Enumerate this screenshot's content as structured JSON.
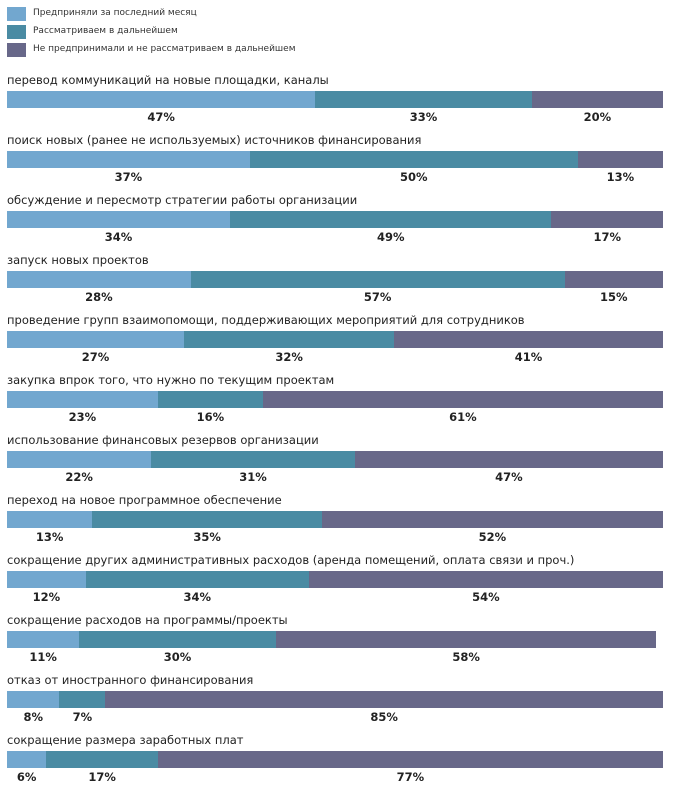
{
  "chart_data": {
    "type": "bar",
    "orientation": "horizontal-stacked-100",
    "colors": [
      "#72a7cf",
      "#4a8ba3",
      "#686889"
    ],
    "legend": [
      "Предприняли за последний месяц",
      "Рассматриваем в дальнейшем",
      "Не предпринимали и не рассматриваем в дальнейшем"
    ],
    "categories": [
      "перевод коммуникаций на новые площадки, каналы",
      "поиск новых (ранее не используемых) источников финансирования",
      "обсуждение и пересмотр стратегии работы организации",
      "запуск новых проектов",
      "проведение групп взаимопомощи, поддерживающих мероприятий для сотрудников",
      "закупка впрок того, что нужно по текущим проектам",
      "использование финансовых резервов организации",
      "переход на новое программное обеспечение",
      "сокращение других административных расходов (аренда помещений, оплата связи и проч.)",
      "сокращение расходов на программы/проекты",
      "отказ от иностранного финансирования",
      "сокращение размера заработных плат"
    ],
    "series": [
      {
        "name": "Предприняли за последний месяц",
        "values": [
          47,
          37,
          34,
          28,
          27,
          23,
          22,
          13,
          12,
          11,
          8,
          6
        ]
      },
      {
        "name": "Рассматриваем в дальнейшем",
        "values": [
          33,
          50,
          49,
          57,
          32,
          16,
          31,
          35,
          34,
          30,
          7,
          17
        ]
      },
      {
        "name": "Не предпринимали и не рассматриваем в дальнейшем",
        "values": [
          20,
          13,
          17,
          15,
          41,
          61,
          47,
          52,
          54,
          58,
          85,
          77
        ]
      }
    ],
    "value_suffix": "%"
  }
}
